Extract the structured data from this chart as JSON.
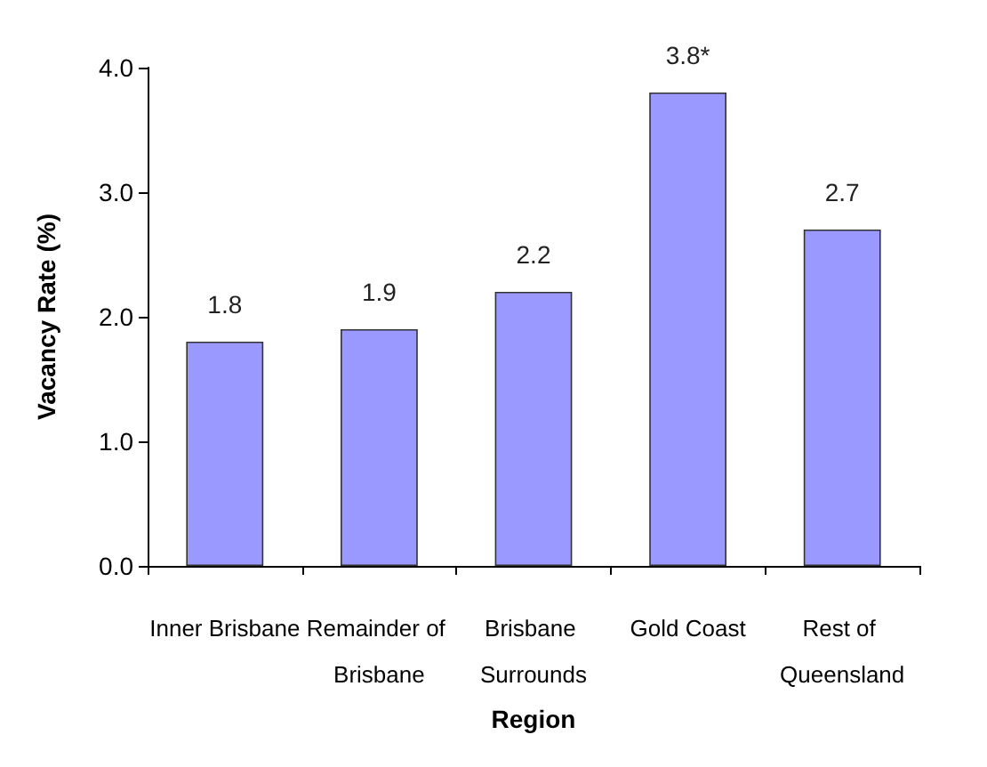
{
  "chart_data": {
    "type": "bar",
    "xlabel": "Region",
    "ylabel": "Vacancy Rate (%)",
    "categories": [
      "Inner Brisbane",
      "Remainder of Brisbane",
      "Brisbane Surrounds",
      "Gold Coast",
      "Rest of Queensland"
    ],
    "values": [
      1.8,
      1.9,
      2.2,
      3.8,
      2.7
    ],
    "value_labels": [
      "1.8",
      "1.9",
      "2.2",
      "3.8*",
      "2.7"
    ],
    "color": "#9999ff",
    "ylim": [
      0,
      4
    ],
    "yticks": [
      {
        "value": 0,
        "label": "0.0"
      },
      {
        "value": 1,
        "label": "1.0"
      },
      {
        "value": 2,
        "label": "2.0"
      },
      {
        "value": 3,
        "label": "3.0"
      },
      {
        "value": 4,
        "label": "4.0"
      }
    ],
    "grid": false
  }
}
